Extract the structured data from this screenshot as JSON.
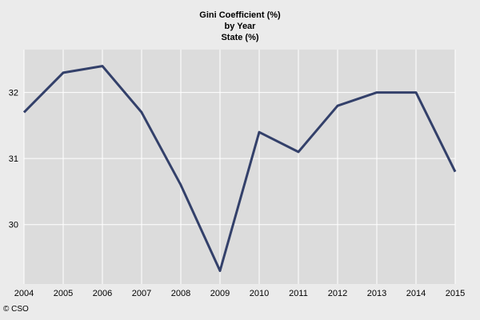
{
  "chart_data": {
    "type": "line",
    "title": "Gini Coefficient (%)",
    "subtitle_lines": [
      "by Year",
      "State (%)"
    ],
    "x": [
      2004,
      2005,
      2006,
      2007,
      2008,
      2009,
      2010,
      2011,
      2012,
      2013,
      2014,
      2015
    ],
    "series": [
      {
        "values": [
          31.7,
          32.3,
          32.4,
          31.7,
          30.6,
          29.3,
          31.4,
          31.1,
          31.8,
          32.0,
          32.0,
          30.8
        ]
      }
    ],
    "xlim": [
      2004,
      2015
    ],
    "ylim": [
      29.1,
      32.65
    ],
    "y_ticks": [
      30,
      31,
      32
    ],
    "grid": true,
    "line_color": "#33406a",
    "plot_background": "#dcdcdc",
    "grid_color": "#ffffff"
  },
  "credit": "© CSO"
}
